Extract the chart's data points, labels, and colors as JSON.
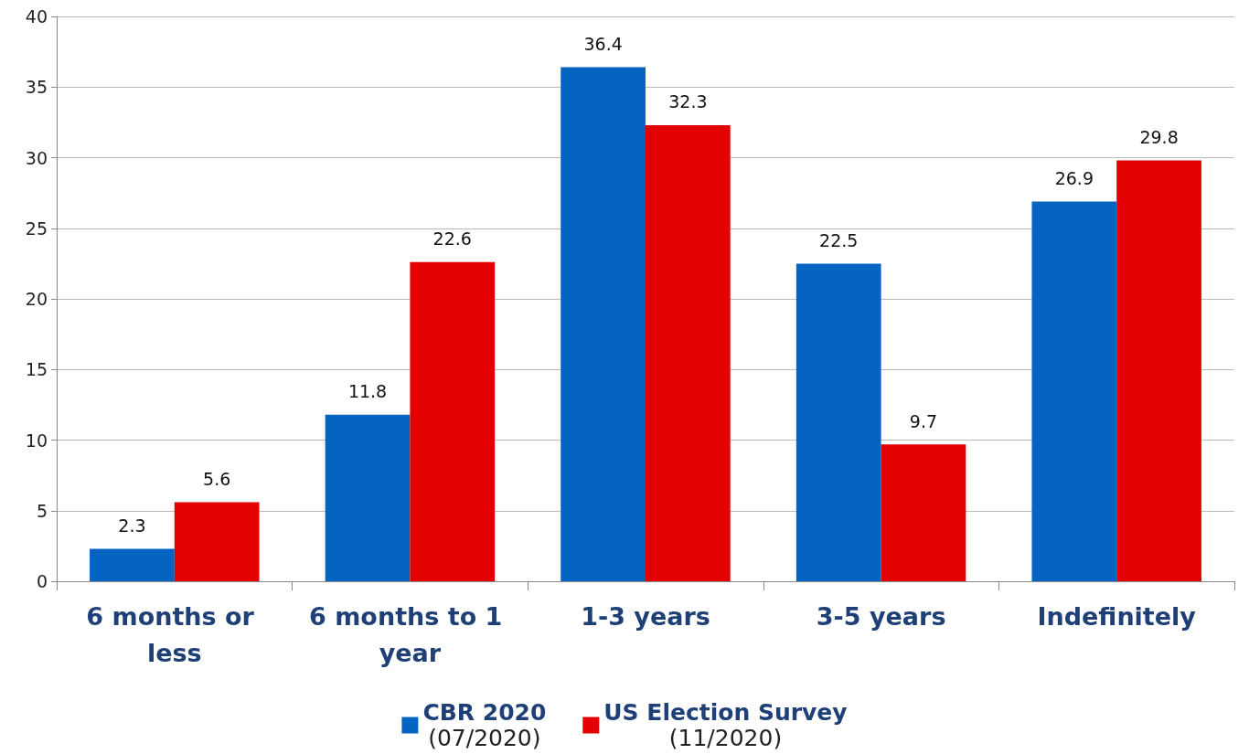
{
  "chart_data": {
    "type": "bar",
    "categories": [
      "6 months or less",
      "6 months to 1 year",
      "1-3 years",
      "3-5 years",
      "Indefinitely"
    ],
    "series": [
      {
        "name": "CBR 2020\n(07/2020)",
        "color": "#0563c1",
        "values": [
          2.3,
          11.8,
          36.4,
          22.5,
          26.9
        ]
      },
      {
        "name": "US Election Survey\n(11/2020)",
        "color": "#e30000",
        "values": [
          5.6,
          22.6,
          32.3,
          9.7,
          29.8
        ]
      }
    ],
    "ylim": [
      0,
      40
    ],
    "yticks": [
      0,
      5,
      10,
      15,
      20,
      25,
      30,
      35,
      40
    ],
    "grid": "y",
    "legend": "bottom",
    "data_labels": true
  }
}
